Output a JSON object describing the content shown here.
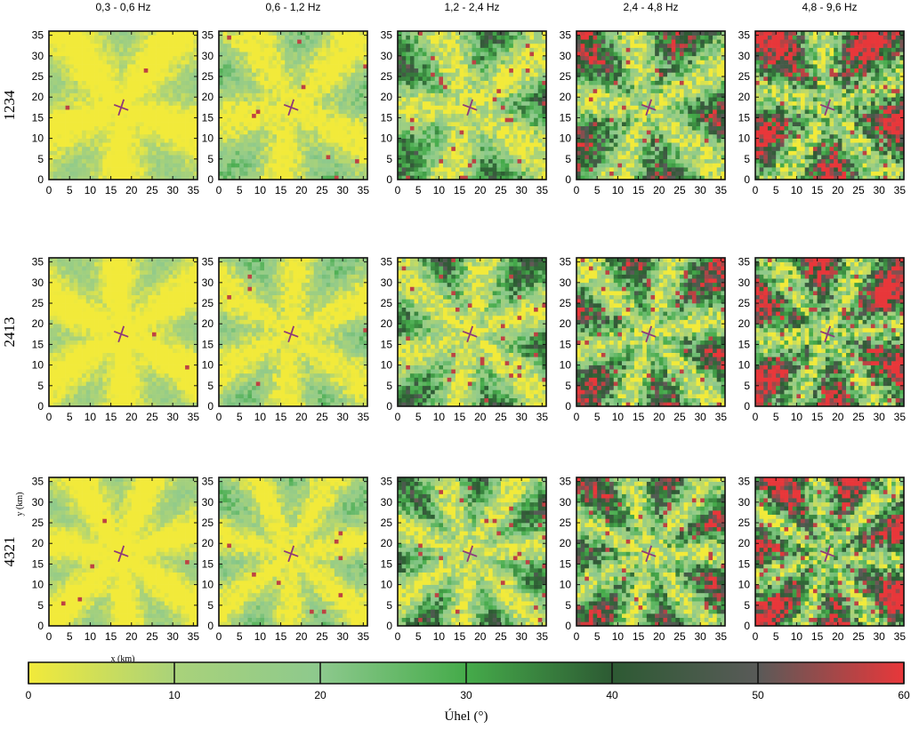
{
  "chart_data": {
    "type": "heatmap",
    "column_titles": [
      "0,3 - 0,6 Hz",
      "0,6 - 1,2 Hz",
      "1,2 - 2,4 Hz",
      "2,4 - 4,8 Hz",
      "4,8 - 9,6 Hz"
    ],
    "row_labels": [
      "1234",
      "2413",
      "4321"
    ],
    "xlabel": "x (km)",
    "ylabel": "y (km)",
    "xlim": [
      0,
      36
    ],
    "ylim": [
      0,
      36
    ],
    "x_ticks": [
      "0",
      "5",
      "10",
      "15",
      "20",
      "25",
      "30",
      "35"
    ],
    "y_ticks": [
      "0",
      "5",
      "10",
      "15",
      "20",
      "25",
      "30",
      "35"
    ],
    "source_marker": {
      "x": 17.5,
      "y": 17.5,
      "symbol": "star"
    },
    "darkness_fraction_by_column": [
      0.05,
      0.15,
      0.4,
      0.6,
      0.8
    ],
    "colorbar": {
      "label": "Úhel (°)",
      "range": [
        0,
        60
      ],
      "ticks": [
        "0",
        "10",
        "20",
        "30",
        "40",
        "50",
        "60"
      ],
      "colors": [
        "#f2ea3a",
        "#a9d27a",
        "#8dc98d",
        "#45ab4a",
        "#2d5a33",
        "#595a58",
        "#e8373a"
      ]
    }
  }
}
